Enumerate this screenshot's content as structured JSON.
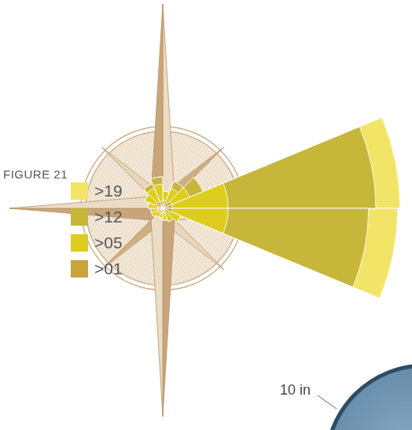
{
  "chart_data": {
    "type": "polarArea",
    "title": "FIGURE 21",
    "categories": [
      null,
      null,
      null,
      null,
      null,
      null,
      null,
      null,
      null,
      null,
      null,
      null,
      null,
      null,
      null,
      null
    ],
    "series": [
      {
        "name": ">01",
        "color": "#c9a43a",
        "values": [
          3,
          3,
          4,
          4,
          4,
          3,
          2,
          2,
          2,
          2,
          2,
          2,
          2,
          3,
          3,
          3
        ]
      },
      {
        "name": ">05",
        "color": "#dccd1e",
        "values": [
          4,
          6,
          8,
          23,
          23,
          5,
          4,
          3,
          2,
          2,
          3,
          3,
          4,
          5,
          6,
          7
        ]
      },
      {
        "name": ">12",
        "color": "#c6b63a",
        "values": [
          0,
          3,
          6,
          61,
          58,
          0,
          0,
          0,
          0,
          0,
          0,
          0,
          0,
          0,
          2,
          3
        ]
      },
      {
        "name": ">19",
        "color": "#f2e466",
        "values": [
          0,
          0,
          0,
          10,
          12,
          0,
          0,
          0,
          0,
          0,
          0,
          0,
          0,
          0,
          0,
          0
        ]
      }
    ],
    "stacked": true,
    "ylim": [
      0,
      100
    ],
    "tick_labels": false,
    "grid": false,
    "legend": "left",
    "annotations": [
      "10 in"
    ]
  }
}
